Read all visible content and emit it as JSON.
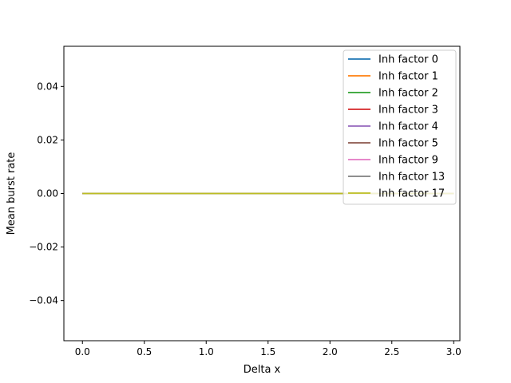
{
  "chart_data": {
    "type": "line",
    "title": "",
    "xlabel": "Delta x",
    "ylabel": "Mean burst rate",
    "xlim": [
      -0.15,
      3.05
    ],
    "ylim": [
      -0.055,
      0.055
    ],
    "xticks": [
      0.0,
      0.5,
      1.0,
      1.5,
      2.0,
      2.5,
      3.0
    ],
    "xtick_labels": [
      "0.0",
      "0.5",
      "1.0",
      "1.5",
      "2.0",
      "2.5",
      "3.0"
    ],
    "yticks": [
      -0.04,
      -0.02,
      0.0,
      0.02,
      0.04
    ],
    "ytick_labels": [
      "−0.04",
      "−0.02",
      "0.00",
      "0.02",
      "0.04"
    ],
    "grid": false,
    "legend_position": "top-right",
    "x": [
      0.0,
      0.5,
      1.0,
      1.5,
      2.0,
      2.5,
      3.0
    ],
    "series": [
      {
        "name": "Inh factor 0",
        "color": "#1f77b4",
        "values": [
          0,
          0,
          0,
          0,
          0,
          0,
          0
        ]
      },
      {
        "name": "Inh factor 1",
        "color": "#ff7f0e",
        "values": [
          0,
          0,
          0,
          0,
          0,
          0,
          0
        ]
      },
      {
        "name": "Inh factor 2",
        "color": "#2ca02c",
        "values": [
          0,
          0,
          0,
          0,
          0,
          0,
          0
        ]
      },
      {
        "name": "Inh factor 3",
        "color": "#d62728",
        "values": [
          0,
          0,
          0,
          0,
          0,
          0,
          0
        ]
      },
      {
        "name": "Inh factor 4",
        "color": "#9467bd",
        "values": [
          0,
          0,
          0,
          0,
          0,
          0,
          0
        ]
      },
      {
        "name": "Inh factor 5",
        "color": "#8c564b",
        "values": [
          0,
          0,
          0,
          0,
          0,
          0,
          0
        ]
      },
      {
        "name": "Inh factor 9",
        "color": "#e377c2",
        "values": [
          0,
          0,
          0,
          0,
          0,
          0,
          0
        ]
      },
      {
        "name": "Inh factor 13",
        "color": "#7f7f7f",
        "values": [
          0,
          0,
          0,
          0,
          0,
          0,
          0
        ]
      },
      {
        "name": "Inh factor 17",
        "color": "#bcbd22",
        "values": [
          0,
          0,
          0,
          0,
          0,
          0,
          0
        ]
      }
    ]
  }
}
